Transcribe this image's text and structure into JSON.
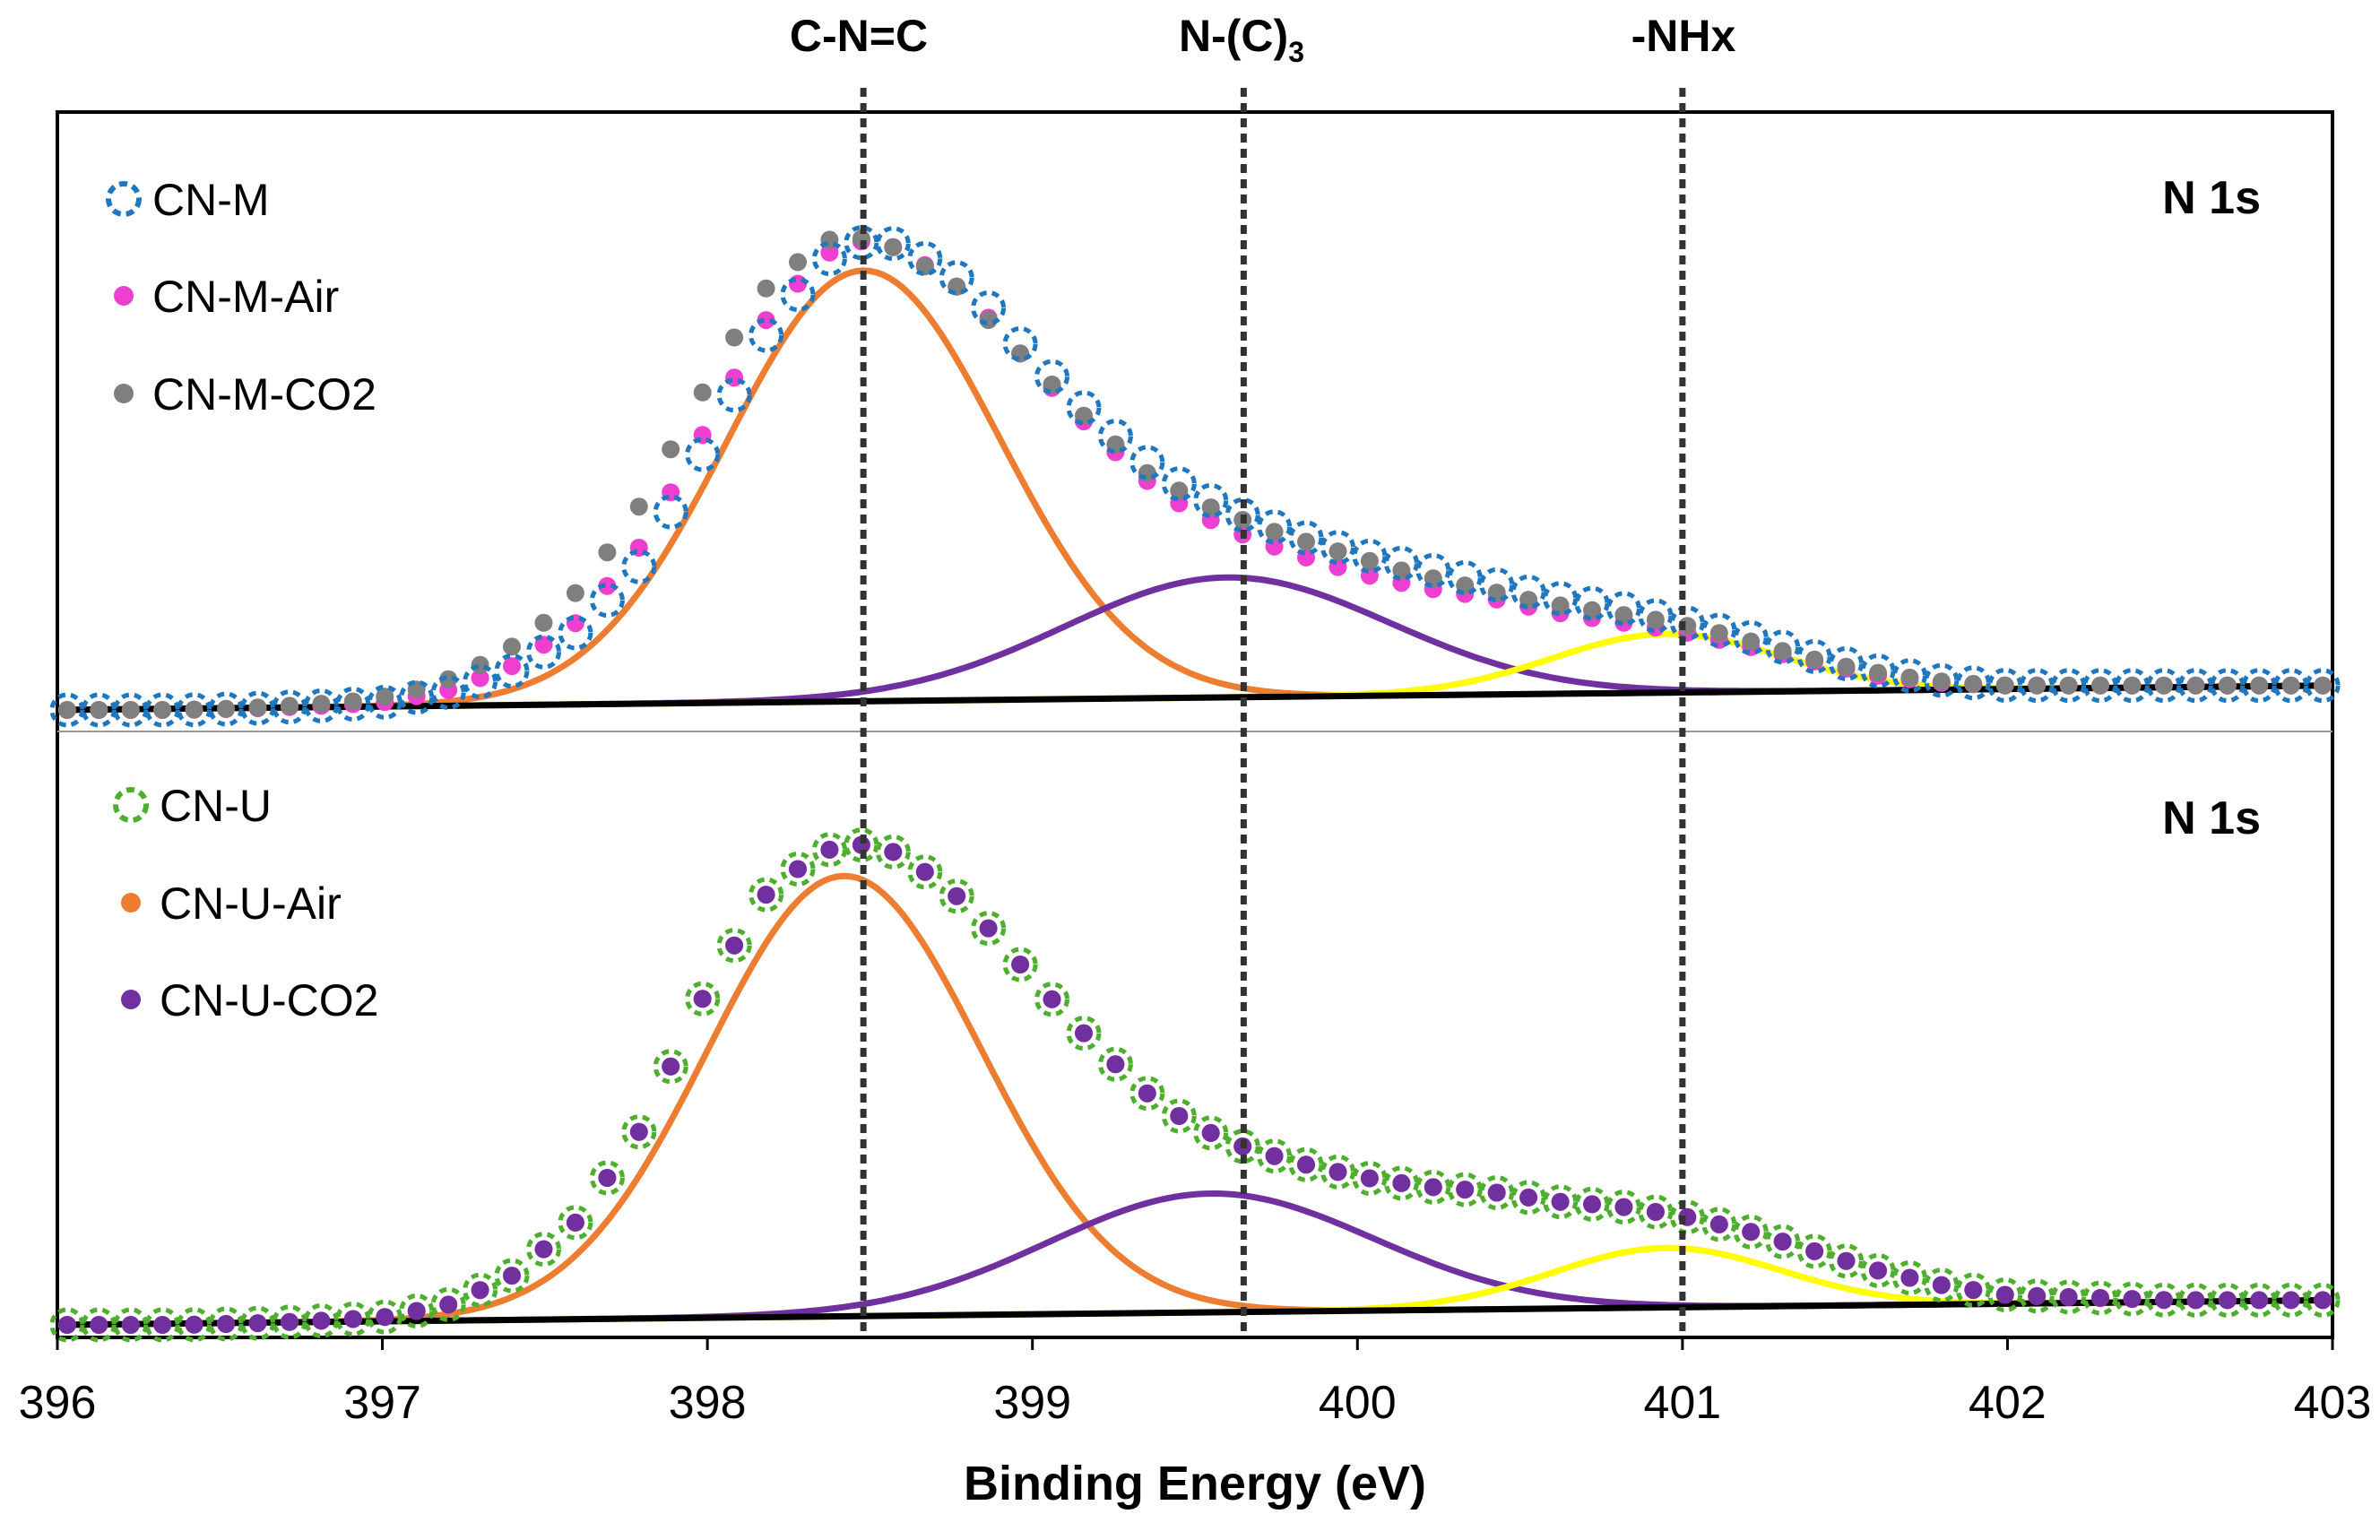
{
  "chart_data": {
    "type": "scatter",
    "xlabel": "Binding Energy (eV)",
    "ylabel": "",
    "xlim": [
      396,
      403
    ],
    "x_ticks": [
      "396",
      "397",
      "398",
      "399",
      "400",
      "401",
      "402",
      "403"
    ],
    "grid": false,
    "reference_lines": [
      {
        "label": "C-N=C",
        "x": 398.48
      },
      {
        "label_main": "N-(C)",
        "label_sub": "3",
        "x": 399.65
      },
      {
        "label": "-NHx",
        "x": 401.0
      }
    ],
    "panels": [
      {
        "panel_label": "N 1s",
        "ylim": [
          0,
          1.0
        ],
        "baseline": [
          [
            396,
            0.0
          ],
          [
            403,
            0.05
          ]
        ],
        "components": [
          {
            "name": "C-N=C",
            "color": "#ED7D31",
            "center": 398.48,
            "height": 0.88,
            "sigma": 0.42
          },
          {
            "name": "N-(C)3",
            "color": "#7030A0",
            "center": 399.6,
            "height": 0.245,
            "sigma": 0.5
          },
          {
            "name": "-NHx",
            "color": "#FFFF00",
            "center": 400.95,
            "height": 0.12,
            "sigma": 0.35
          }
        ],
        "series": [
          {
            "name": "CN-M",
            "marker": "open-dashed-circle",
            "color": "#1F77C0",
            "values": [
              [
                396.0,
                0.0
              ],
              [
                396.2,
                0.0
              ],
              [
                396.4,
                0.0
              ],
              [
                396.6,
                0.003
              ],
              [
                396.8,
                0.008
              ],
              [
                397.0,
                0.015
              ],
              [
                397.2,
                0.035
              ],
              [
                397.4,
                0.08
              ],
              [
                397.6,
                0.16
              ],
              [
                397.8,
                0.3
              ],
              [
                398.0,
                0.54
              ],
              [
                398.2,
                0.79
              ],
              [
                398.4,
                0.94
              ],
              [
                398.5,
                0.96
              ],
              [
                398.6,
                0.95
              ],
              [
                398.8,
                0.87
              ],
              [
                399.0,
                0.72
              ],
              [
                399.2,
                0.59
              ],
              [
                399.4,
                0.48
              ],
              [
                399.6,
                0.41
              ],
              [
                399.8,
                0.36
              ],
              [
                400.0,
                0.32
              ],
              [
                400.2,
                0.29
              ],
              [
                400.4,
                0.26
              ],
              [
                400.6,
                0.23
              ],
              [
                400.8,
                0.21
              ],
              [
                401.0,
                0.18
              ],
              [
                401.2,
                0.15
              ],
              [
                401.4,
                0.11
              ],
              [
                401.6,
                0.08
              ],
              [
                401.8,
                0.06
              ],
              [
                402.0,
                0.05
              ],
              [
                402.5,
                0.05
              ],
              [
                403.0,
                0.05
              ]
            ]
          },
          {
            "name": "CN-M-Air",
            "marker": "filled-dot",
            "color": "#EE3FD1",
            "values": [
              [
                396.0,
                0.0
              ],
              [
                396.2,
                0.0
              ],
              [
                396.4,
                0.0
              ],
              [
                396.6,
                0.003
              ],
              [
                396.8,
                0.008
              ],
              [
                397.0,
                0.015
              ],
              [
                397.2,
                0.04
              ],
              [
                397.4,
                0.09
              ],
              [
                397.6,
                0.18
              ],
              [
                397.8,
                0.34
              ],
              [
                398.0,
                0.58
              ],
              [
                398.2,
                0.82
              ],
              [
                398.4,
                0.95
              ],
              [
                398.5,
                0.96
              ],
              [
                398.6,
                0.94
              ],
              [
                398.8,
                0.85
              ],
              [
                399.0,
                0.7
              ],
              [
                399.2,
                0.56
              ],
              [
                399.4,
                0.44
              ],
              [
                399.6,
                0.37
              ],
              [
                399.8,
                0.32
              ],
              [
                400.0,
                0.28
              ],
              [
                400.2,
                0.25
              ],
              [
                400.4,
                0.23
              ],
              [
                400.6,
                0.2
              ],
              [
                400.8,
                0.18
              ],
              [
                401.0,
                0.16
              ],
              [
                401.2,
                0.13
              ],
              [
                401.4,
                0.1
              ],
              [
                401.6,
                0.07
              ],
              [
                401.8,
                0.055
              ],
              [
                402.0,
                0.05
              ],
              [
                402.5,
                0.05
              ],
              [
                403.0,
                0.05
              ]
            ]
          },
          {
            "name": "CN-M-CO2",
            "marker": "filled-dot",
            "color": "#7F7F7F",
            "values": [
              [
                396.0,
                0.0
              ],
              [
                396.2,
                0.0
              ],
              [
                396.4,
                0.0
              ],
              [
                396.6,
                0.003
              ],
              [
                396.8,
                0.01
              ],
              [
                397.0,
                0.02
              ],
              [
                397.2,
                0.05
              ],
              [
                397.4,
                0.11
              ],
              [
                397.6,
                0.21
              ],
              [
                397.8,
                0.38
              ],
              [
                398.0,
                0.62
              ],
              [
                398.2,
                0.85
              ],
              [
                398.4,
                0.96
              ],
              [
                398.5,
                0.965
              ],
              [
                398.6,
                0.95
              ],
              [
                398.8,
                0.87
              ],
              [
                399.0,
                0.73
              ],
              [
                399.2,
                0.6
              ],
              [
                399.4,
                0.48
              ],
              [
                399.6,
                0.41
              ],
              [
                399.8,
                0.36
              ],
              [
                400.0,
                0.32
              ],
              [
                400.2,
                0.28
              ],
              [
                400.4,
                0.25
              ],
              [
                400.6,
                0.22
              ],
              [
                400.8,
                0.2
              ],
              [
                401.0,
                0.18
              ],
              [
                401.2,
                0.15
              ],
              [
                401.4,
                0.11
              ],
              [
                401.6,
                0.08
              ],
              [
                401.8,
                0.06
              ],
              [
                402.0,
                0.05
              ],
              [
                402.5,
                0.05
              ],
              [
                403.0,
                0.05
              ]
            ]
          }
        ]
      },
      {
        "panel_label": "N 1s",
        "ylim": [
          0,
          1.0
        ],
        "baseline": [
          [
            396,
            0.0
          ],
          [
            403,
            0.05
          ]
        ],
        "components": [
          {
            "name": "C-N=C",
            "color": "#ED7D31",
            "center": 398.42,
            "height": 0.89,
            "sigma": 0.42
          },
          {
            "name": "N-(C)3",
            "color": "#7030A0",
            "center": 399.55,
            "height": 0.24,
            "sigma": 0.5
          },
          {
            "name": "-NHx",
            "color": "#FFFF00",
            "center": 400.95,
            "height": 0.12,
            "sigma": 0.35
          }
        ],
        "series": [
          {
            "name": "CN-U",
            "marker": "open-dashed-circle",
            "color": "#4EAF2F",
            "values": [
              [
                396.0,
                0.0
              ],
              [
                396.2,
                0.0
              ],
              [
                396.4,
                0.0
              ],
              [
                396.6,
                0.003
              ],
              [
                396.8,
                0.008
              ],
              [
                397.0,
                0.015
              ],
              [
                397.2,
                0.04
              ],
              [
                397.4,
                0.1
              ],
              [
                397.6,
                0.21
              ],
              [
                397.8,
                0.4
              ],
              [
                398.0,
                0.68
              ],
              [
                398.2,
                0.89
              ],
              [
                398.4,
                0.97
              ],
              [
                398.5,
                0.97
              ],
              [
                398.6,
                0.95
              ],
              [
                398.8,
                0.85
              ],
              [
                399.0,
                0.7
              ],
              [
                399.2,
                0.56
              ],
              [
                399.4,
                0.44
              ],
              [
                399.6,
                0.37
              ],
              [
                399.8,
                0.33
              ],
              [
                400.0,
                0.3
              ],
              [
                400.2,
                0.28
              ],
              [
                400.4,
                0.27
              ],
              [
                400.6,
                0.25
              ],
              [
                400.8,
                0.24
              ],
              [
                401.0,
                0.22
              ],
              [
                401.2,
                0.19
              ],
              [
                401.4,
                0.15
              ],
              [
                401.6,
                0.11
              ],
              [
                401.8,
                0.08
              ],
              [
                402.0,
                0.06
              ],
              [
                402.5,
                0.05
              ],
              [
                403.0,
                0.05
              ]
            ]
          },
          {
            "name": "CN-U-Air",
            "marker": "filled-dot",
            "color": "#ED7D31",
            "values": [
              [
                396.0,
                0.0
              ],
              [
                396.2,
                0.0
              ],
              [
                396.4,
                0.0
              ],
              [
                396.6,
                0.003
              ],
              [
                396.8,
                0.008
              ],
              [
                397.0,
                0.015
              ],
              [
                397.2,
                0.04
              ],
              [
                397.4,
                0.1
              ],
              [
                397.6,
                0.21
              ],
              [
                397.8,
                0.4
              ],
              [
                398.0,
                0.68
              ],
              [
                398.2,
                0.89
              ],
              [
                398.4,
                0.97
              ],
              [
                398.5,
                0.97
              ],
              [
                398.6,
                0.95
              ],
              [
                398.8,
                0.85
              ],
              [
                399.0,
                0.7
              ],
              [
                399.2,
                0.56
              ],
              [
                399.4,
                0.44
              ],
              [
                399.6,
                0.37
              ],
              [
                399.8,
                0.33
              ],
              [
                400.0,
                0.3
              ],
              [
                400.2,
                0.28
              ],
              [
                400.4,
                0.27
              ],
              [
                400.6,
                0.25
              ],
              [
                400.8,
                0.24
              ],
              [
                401.0,
                0.22
              ],
              [
                401.2,
                0.19
              ],
              [
                401.4,
                0.15
              ],
              [
                401.6,
                0.11
              ],
              [
                401.8,
                0.08
              ],
              [
                402.0,
                0.06
              ],
              [
                402.5,
                0.05
              ],
              [
                403.0,
                0.05
              ]
            ]
          },
          {
            "name": "CN-U-CO2",
            "marker": "filled-dot",
            "color": "#7030A0",
            "values": [
              [
                396.0,
                0.0
              ],
              [
                396.2,
                0.0
              ],
              [
                396.4,
                0.0
              ],
              [
                396.6,
                0.003
              ],
              [
                396.8,
                0.008
              ],
              [
                397.0,
                0.015
              ],
              [
                397.2,
                0.04
              ],
              [
                397.4,
                0.1
              ],
              [
                397.6,
                0.21
              ],
              [
                397.8,
                0.4
              ],
              [
                398.0,
                0.68
              ],
              [
                398.2,
                0.89
              ],
              [
                398.4,
                0.97
              ],
              [
                398.5,
                0.97
              ],
              [
                398.6,
                0.95
              ],
              [
                398.8,
                0.85
              ],
              [
                399.0,
                0.7
              ],
              [
                399.2,
                0.56
              ],
              [
                399.4,
                0.44
              ],
              [
                399.6,
                0.37
              ],
              [
                399.8,
                0.33
              ],
              [
                400.0,
                0.3
              ],
              [
                400.2,
                0.28
              ],
              [
                400.4,
                0.27
              ],
              [
                400.6,
                0.25
              ],
              [
                400.8,
                0.24
              ],
              [
                401.0,
                0.22
              ],
              [
                401.2,
                0.19
              ],
              [
                401.4,
                0.15
              ],
              [
                401.6,
                0.11
              ],
              [
                401.8,
                0.08
              ],
              [
                402.0,
                0.06
              ],
              [
                402.5,
                0.05
              ],
              [
                403.0,
                0.05
              ]
            ]
          }
        ]
      }
    ]
  }
}
